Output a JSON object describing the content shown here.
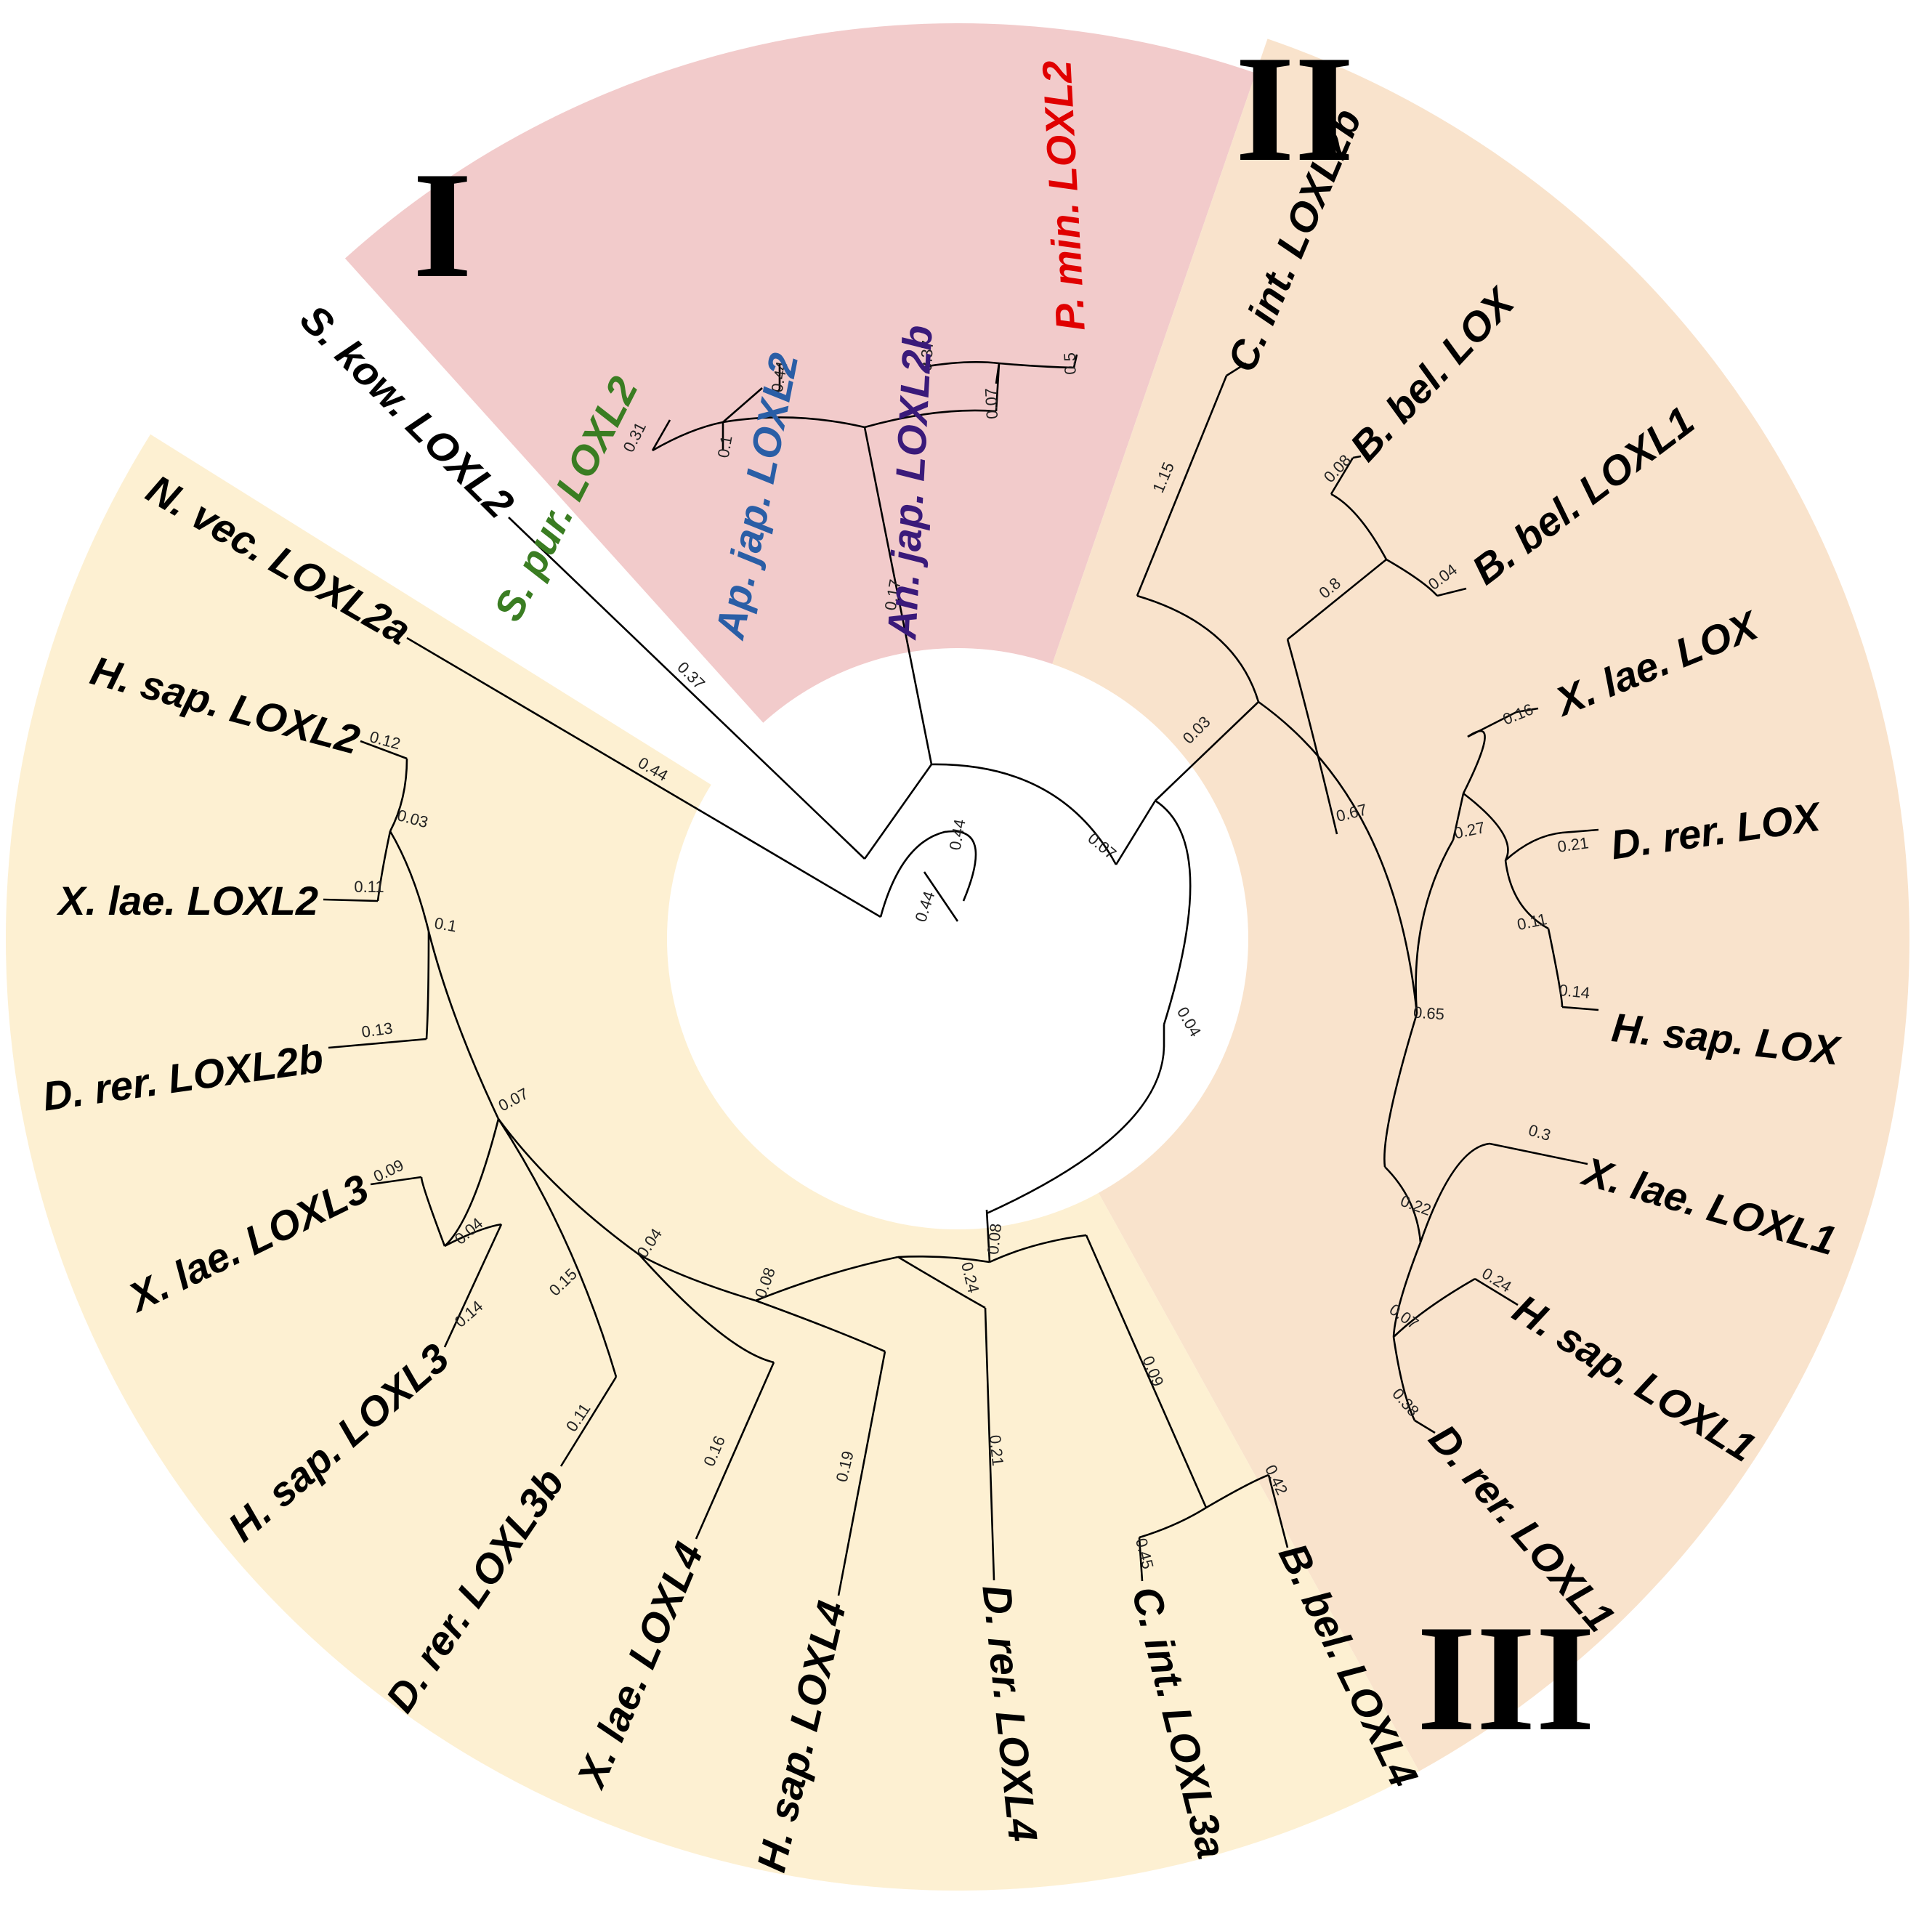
{
  "colors": {
    "clade_I": "#f2cbcb",
    "clade_II": "#f9e3cc",
    "clade_III": "#fdf0d2",
    "highlight_lineage_spur": "#3a7d22",
    "highlight_lineage_apjap": "#2a5ea6",
    "highlight_lineage_anjap": "#3a1a7a",
    "highlight_lineage_pmin": "#e00000",
    "default_text": "#000000"
  },
  "clade_labels": [
    "I",
    "II",
    "III"
  ],
  "leaves": [
    {
      "label": "S. pur. LOXL2",
      "color": "#3a7d22"
    },
    {
      "label": "Ap. jap. LOXL2",
      "color": "#2a5ea6"
    },
    {
      "label": "An. jap. LOXL2b",
      "color": "#3a1a7a"
    },
    {
      "label": "P. min. LOXL2",
      "color": "#e00000"
    },
    {
      "label": "C. int. LOXL2b",
      "color": "#000000"
    },
    {
      "label": "B. bel. LOX",
      "color": "#000000"
    },
    {
      "label": "B. bel. LOXL1",
      "color": "#000000"
    },
    {
      "label": "X. lae. LOX",
      "color": "#000000"
    },
    {
      "label": "D. rer. LOX",
      "color": "#000000"
    },
    {
      "label": "H. sap. LOX",
      "color": "#000000"
    },
    {
      "label": "X. lae. LOXL1",
      "color": "#000000"
    },
    {
      "label": "H. sap. LOXL1",
      "color": "#000000"
    },
    {
      "label": "D. rer. LOXL1",
      "color": "#000000"
    },
    {
      "label": "B. bel. LOXL4",
      "color": "#000000"
    },
    {
      "label": "C. int. LOXL3a",
      "color": "#000000"
    },
    {
      "label": "D. rer. LOXL4",
      "color": "#000000"
    },
    {
      "label": "H. sap. LOXL4",
      "color": "#000000"
    },
    {
      "label": "X. lae. LOXL4",
      "color": "#000000"
    },
    {
      "label": "D. rer. LOXL3b",
      "color": "#000000"
    },
    {
      "label": "H. sap. LOXL3",
      "color": "#000000"
    },
    {
      "label": "X. lae. LOXL3",
      "color": "#000000"
    },
    {
      "label": "D. rer. LOXL2b",
      "color": "#000000"
    },
    {
      "label": "X. lae. LOXL2",
      "color": "#000000"
    },
    {
      "label": "H. sap. LOXL2",
      "color": "#000000"
    },
    {
      "label": "N. vec. LOXL2a",
      "color": "#000000"
    },
    {
      "label": "S. kow. LOXL2",
      "color": "#000000"
    }
  ],
  "branch_lengths": [
    "0.31",
    "0.44",
    "0.1",
    "0.37",
    "0.5",
    "0.07",
    "0.17",
    "1.15",
    "0.08",
    "0.04",
    "0.8",
    "0.16",
    "0.21",
    "0.14",
    "0.11",
    "0.27",
    "0.3",
    "0.24",
    "0.38",
    "0.07",
    "0.22",
    "0.65",
    "0.67",
    "0.03",
    "0.42",
    "0.45",
    "0.09",
    "0.21",
    "0.19",
    "0.24",
    "0.16",
    "0.08",
    "0.04",
    "0.11",
    "0.14",
    "0.04",
    "0.09",
    "0.15",
    "0.07",
    "0.13",
    "0.11",
    "0.12",
    "0.03",
    "0.1",
    "0.08",
    "0.04",
    "0.07",
    "0.44",
    "0.44",
    "0.44",
    "0.37"
  ]
}
